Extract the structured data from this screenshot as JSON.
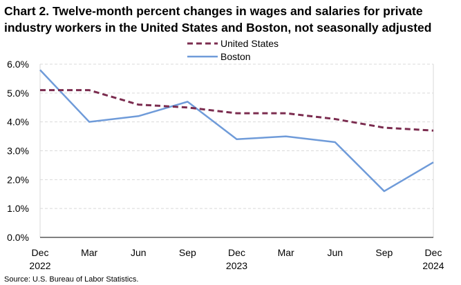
{
  "title": "Chart 2. Twelve-month percent changes in wages and salaries for private industry workers in the United States and Boston, not seasonally adjusted",
  "source": "Source: U.S. Bureau of Labor Statistics.",
  "chart_data": {
    "type": "line",
    "title": "Chart 2. Twelve-month percent changes in wages and salaries for private industry workers in the United States and Boston, not seasonally adjusted",
    "xlabel": "",
    "ylabel": "",
    "ylim": [
      0,
      6
    ],
    "yticks": [
      "0.0%",
      "1.0%",
      "2.0%",
      "3.0%",
      "4.0%",
      "5.0%",
      "6.0%"
    ],
    "grid": true,
    "legend": "top-center",
    "categories": [
      {
        "month": "Dec",
        "year": "2022"
      },
      {
        "month": "Mar",
        "year": ""
      },
      {
        "month": "Jun",
        "year": ""
      },
      {
        "month": "Sep",
        "year": ""
      },
      {
        "month": "Dec",
        "year": "2023"
      },
      {
        "month": "Mar",
        "year": ""
      },
      {
        "month": "Jun",
        "year": ""
      },
      {
        "month": "Sep",
        "year": ""
      },
      {
        "month": "Dec",
        "year": "2024"
      }
    ],
    "series": [
      {
        "name": "United States",
        "color": "#7b2c4f",
        "style": "dashed",
        "values": [
          5.1,
          5.1,
          4.6,
          4.5,
          4.3,
          4.3,
          4.1,
          3.8,
          3.7
        ]
      },
      {
        "name": "Boston",
        "color": "#6f9bd9",
        "style": "solid",
        "values": [
          5.8,
          4.0,
          4.2,
          4.7,
          3.4,
          3.5,
          3.3,
          1.6,
          2.6
        ]
      }
    ]
  }
}
